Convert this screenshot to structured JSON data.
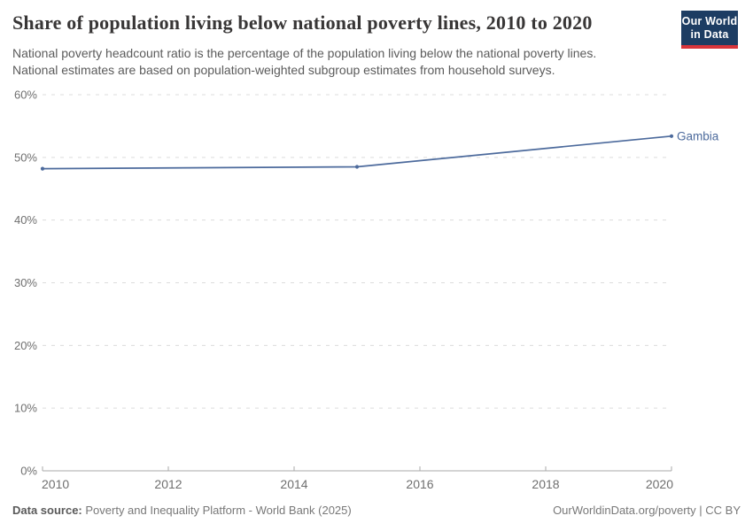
{
  "header": {
    "title": "Share of population living below national poverty lines, 2010 to 2020",
    "subtitle_line1": "National poverty headcount ratio is the percentage of the population living below the national poverty lines.",
    "subtitle_line2": "National estimates are based on population-weighted subgroup estimates from household surveys."
  },
  "logo": {
    "line1": "Our World",
    "line2": "in Data",
    "bg_color": "#1d3d63",
    "accent_color": "#d8353b"
  },
  "chart_data": {
    "type": "line",
    "title": "Share of population living below national poverty lines, 2010 to 2020",
    "series": [
      {
        "name": "Gambia",
        "color": "#4c6a9c",
        "points": [
          {
            "x": 2010,
            "y": 48.2
          },
          {
            "x": 2015,
            "y": 48.5
          },
          {
            "x": 2020,
            "y": 53.4
          }
        ]
      }
    ],
    "xlim": [
      2010,
      2020
    ],
    "ylim": [
      0,
      60
    ],
    "x_ticks": [
      2010,
      2012,
      2014,
      2016,
      2018,
      2020
    ],
    "y_ticks": [
      0,
      10,
      20,
      30,
      40,
      50,
      60
    ],
    "y_tick_suffix": "%",
    "grid": true,
    "gridline_color": "#dcdcdc",
    "axis_line_color": "#a8a8a8",
    "tick_label_color": "#6f6f6f",
    "legend_position": "end-of-line-label"
  },
  "footer": {
    "source_label": "Data source:",
    "source_text": "Poverty and Inequality Platform - World Bank (2025)",
    "attribution": "OurWorldinData.org/poverty | CC BY"
  }
}
